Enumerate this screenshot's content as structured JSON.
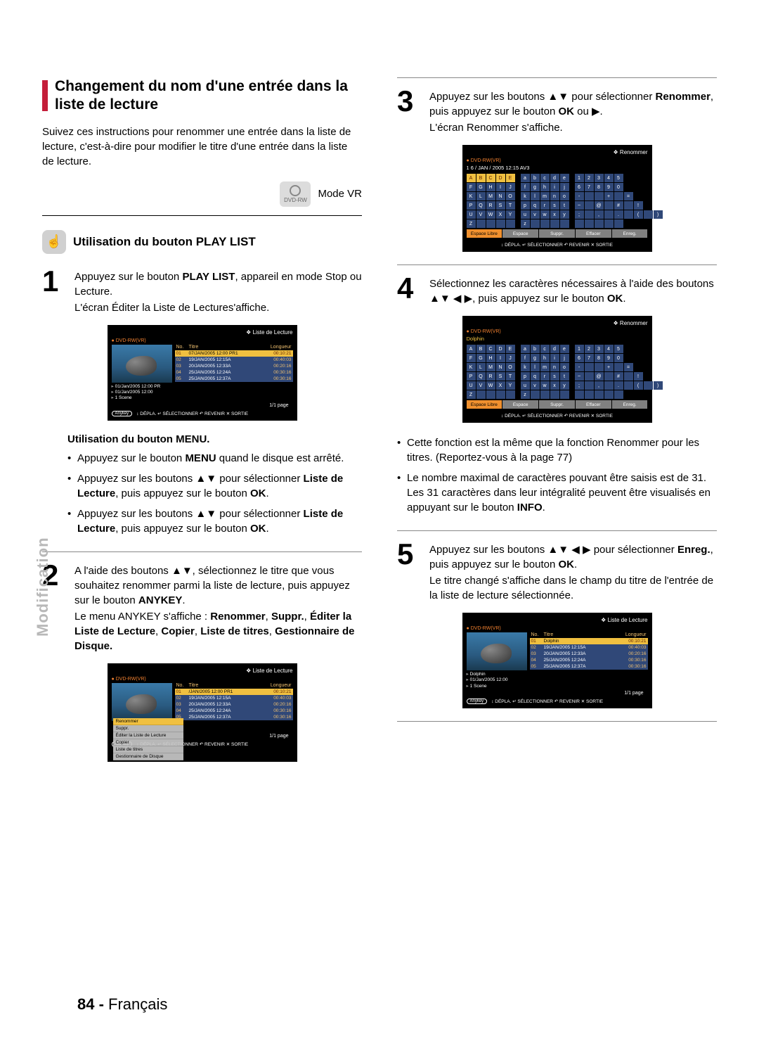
{
  "sidetab": "Modification",
  "footer": {
    "page": "84 -",
    "lang": "Français"
  },
  "colors": {
    "accent_red": "#c41e3a",
    "highlight": "#f0c040",
    "row_blue": "#304878",
    "orange_text": "#f08030"
  },
  "left": {
    "heading": "Changement du nom d'une entrée dans la liste de lecture",
    "intro": "Suivez ces instructions pour renommer une entrée dans la liste de lecture, c'est-à-dire pour modifier le titre d'une entrée dans la liste de lecture.",
    "mode_label": "Mode VR",
    "dvd_badge": "DVD-RW",
    "section_icon_label": "☝",
    "section_title": "Utilisation du bouton PLAY LIST",
    "step1": {
      "num": "1",
      "l1a": "Appuyez sur le bouton ",
      "l1b": "PLAY LIST",
      "l1c": ", appareil en mode Stop ou Lecture.",
      "l2": "L'écran Éditer la Liste de Lectures'affiche."
    },
    "screenshot1": {
      "title": "Liste de Lecture",
      "dvd": "DVD-RW(VR)",
      "head_no": "No.",
      "head_titre": "Titre",
      "head_len": "Longueur",
      "rows": [
        {
          "n": "01",
          "t": "07/JAN/2005 12:00 PR1",
          "l": "00:10:21",
          "sel": true
        },
        {
          "n": "02",
          "t": "19/JAN/2005 12:15A",
          "l": "00:40:03",
          "sel": false
        },
        {
          "n": "03",
          "t": "20/JAN/2005 12:33A",
          "l": "00:20:16",
          "sel": false
        },
        {
          "n": "04",
          "t": "25/JAN/2005 12:24A",
          "l": "00:30:16",
          "sel": false
        },
        {
          "n": "05",
          "t": "25/JAN/2005 12:37A",
          "l": "00:30:16",
          "sel": false
        }
      ],
      "meta1": "01/Jan/2005 12:00 PR",
      "meta2": "01/Jan/2005 12:00",
      "meta3": "1 Scene",
      "page": "1/1 page",
      "foot": [
        "DÉPLA.",
        "SÉLECTIONNER",
        "REVENIR",
        "SORTIE"
      ]
    },
    "menu_heading": "Utilisation du bouton MENU.",
    "menu_b1a": "Appuyez sur le bouton ",
    "menu_b1b": "MENU",
    "menu_b1c": " quand le disque est arrêté.",
    "menu_b2a": "Appuyez sur les boutons ▲▼ pour sélectionner ",
    "menu_b2b": "Liste de Lecture",
    "menu_b2c": ", puis appuyez sur le bouton ",
    "menu_b2d": "OK",
    "menu_b2e": ".",
    "menu_b3a": "Appuyez sur les boutons ▲▼ pour sélectionner ",
    "menu_b3b": "Liste de Lecture",
    "menu_b3c": ", puis appuyez sur le bouton ",
    "menu_b3d": "OK",
    "menu_b3e": ".",
    "step2": {
      "num": "2",
      "l1a": "A l'aide des boutons ▲▼, sélectionnez le titre que vous souhaitez renommer parmi la liste de lecture, puis appuyez sur le bouton ",
      "l1b": "ANYKEY",
      "l1c": ".",
      "l2a": "Le menu ANYKEY s'affiche : ",
      "l2b": "Renommer",
      "l2c": ", ",
      "l2d": "Suppr.",
      "l2e": ", ",
      "l2f": "Éditer la Liste de Lecture",
      "l2g": ", ",
      "l2h": "Copier",
      "l2i": ", ",
      "l2j": "Liste de titres",
      "l2k": ", ",
      "l2l": "Gestionnaire de Disque."
    },
    "screenshot2": {
      "title": "Liste de Lecture",
      "dvd": "DVD-RW(VR)",
      "menu_items": [
        "Renommer",
        "Suppr.",
        "Éditer la Liste de Lecture",
        "Copier",
        "Liste de titres",
        "Gestionnaire de Disque"
      ],
      "rows": [
        {
          "n": "01",
          "t": "/JAN/2005 12:00 PR1",
          "l": "00:10:21",
          "sel": true
        },
        {
          "n": "02",
          "t": "19/JAN/2005 12:15A",
          "l": "00:40:03",
          "sel": false
        },
        {
          "n": "03",
          "t": "20/JAN/2005 12:33A",
          "l": "00:20:16",
          "sel": false
        },
        {
          "n": "04",
          "t": "25/JAN/2005 12:24A",
          "l": "00:30:16",
          "sel": false
        },
        {
          "n": "05",
          "t": "25/JAN/2005 12:37A",
          "l": "00:30:16",
          "sel": false
        }
      ],
      "page": "1/1 page",
      "anykey": "Anykey",
      "foot": [
        "DÉPLA.",
        "SÉLECTIONNER",
        "REVENIR",
        "SORTIE"
      ]
    }
  },
  "right": {
    "step3": {
      "num": "3",
      "l1a": "Appuyez sur les boutons ▲▼ pour sélectionner ",
      "l1b": "Renommer",
      "l1c": ", puis appuyez sur le bouton ",
      "l1d": "OK",
      "l1e": " ou ▶.",
      "l2": "L'écran Renommer s'affiche."
    },
    "screenshot3": {
      "title": "Renommer",
      "dvd": "DVD-RW(VR)",
      "name": "1 6 / JAN / 2005 12:15 AV3",
      "kb_upper": [
        "ABCDE",
        "FGHIJ",
        "KLMNO",
        "PQRST",
        "UVWXY",
        "Z    "
      ],
      "kb_lower": [
        "abcde",
        "fghij",
        "klmno",
        "pqrst",
        "uvwxy",
        "z    "
      ],
      "kb_num": [
        "12345",
        "67890",
        "-  + =",
        "~ @ # !",
        "; , . ( )",
        "     "
      ],
      "bottom": [
        "Espace Libre",
        "Espace",
        "Suppr.",
        "Effacer",
        "Enreg."
      ],
      "foot": [
        "DÉPLA.",
        "SÉLECTIONNER",
        "REVENIR",
        "SORTIE"
      ]
    },
    "step4": {
      "num": "4",
      "l1": "Sélectionnez les caractères nécessaires à l'aide des boutons ▲▼ ◀ ▶, puis appuyez sur le bouton ",
      "l1b": "OK",
      "l1c": "."
    },
    "screenshot4": {
      "title": "Renommer",
      "dvd": "DVD-RW(VR)",
      "name": "Dolphin",
      "bottom": [
        "Espace Libre",
        "Espace",
        "Suppr.",
        "Effacer",
        "Enreg."
      ],
      "foot": [
        "DÉPLA.",
        "SÉLECTIONNER",
        "REVENIR",
        "SORTIE"
      ]
    },
    "notes_b1": "Cette fonction est la même que la fonction Renommer pour les titres. (Reportez-vous à la page 77)",
    "notes_b2a": "Le nombre maximal de caractères pouvant être saisis est de 31. Les 31 caractères dans leur intégralité peuvent être visualisés en appuyant sur le bouton ",
    "notes_b2b": "INFO",
    "notes_b2c": ".",
    "step5": {
      "num": "5",
      "l1": "Appuyez sur les boutons ▲▼ ◀ ▶ pour sélectionner ",
      "l1b": "Enreg.",
      "l1c": ", puis appuyez sur le bouton ",
      "l1d": "OK",
      "l1e": ".",
      "l2": "Le titre changé s'affiche dans le champ du titre de l'entrée de la liste de lecture sélectionnée."
    },
    "screenshot5": {
      "title": "Liste de Lecture",
      "dvd": "DVD-RW(VR)",
      "head_no": "No.",
      "head_titre": "Titre",
      "head_len": "Longueur",
      "rows": [
        {
          "n": "01",
          "t": "Dolphin",
          "l": "00:10:21",
          "sel": true
        },
        {
          "n": "02",
          "t": "19/JAN/2005 12:15A",
          "l": "00:40:03",
          "sel": false
        },
        {
          "n": "03",
          "t": "20/JAN/2005 12:33A",
          "l": "00:20:16",
          "sel": false
        },
        {
          "n": "04",
          "t": "25/JAN/2005 12:24A",
          "l": "00:30:16",
          "sel": false
        },
        {
          "n": "05",
          "t": "25/JAN/2005 12:37A",
          "l": "00:30:16",
          "sel": false
        }
      ],
      "meta1": "Dolphin",
      "meta2": "01/Jan/2005 12:00",
      "meta3": "1 Scene",
      "page": "1/1 page",
      "anykey": "Anykey",
      "foot": [
        "DÉPLA.",
        "SÉLECTIONNER",
        "REVENIR",
        "SORTIE"
      ]
    }
  }
}
